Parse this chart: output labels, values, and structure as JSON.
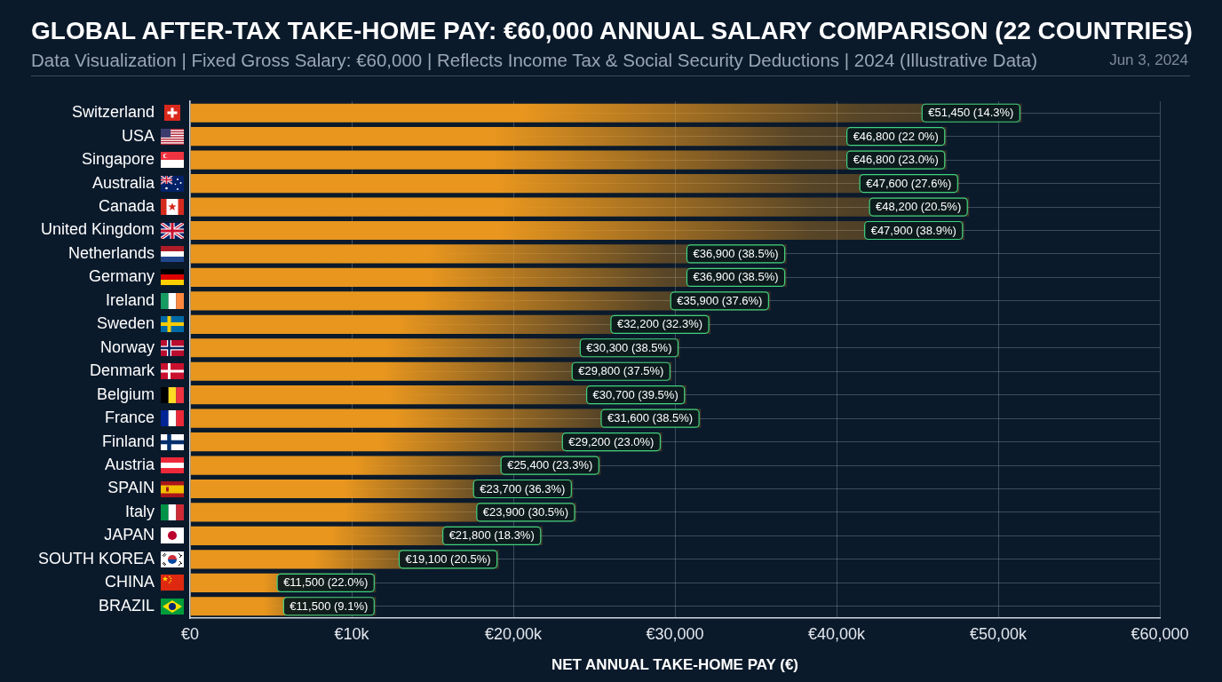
{
  "chart_data": {
    "type": "bar",
    "orientation": "horizontal",
    "title": "GLOBAL AFTER-TAX TAKE-HOME PAY: €60,000 ANNUAL SALARY COMPARISON (22 COUNTRIES)",
    "subtitle": "Data Visualization | Fixed Gross Salary: €60,000 | Reflects Income Tax & Social Security Deductions | 2024 (Illustrative Data)",
    "xlabel": "NET ANNUAL TAKE-HOME PAY (€)",
    "annotations": [
      "Jun 3, 2024"
    ],
    "categories": [
      "Switzerland",
      "USA",
      "Singapore",
      "Australia",
      "Canada",
      "United Kingdom",
      "Netherlands",
      "Germany",
      "Ireland",
      "Sweden",
      "Norway",
      "Denmark",
      "Belgium",
      "France",
      "Finland",
      "Austria",
      "SPAIN",
      "Italy",
      "JAPAN",
      "SOUTH KOREA",
      "CHINA",
      "BRAZIL"
    ],
    "values": [
      51450,
      46800,
      46800,
      47600,
      48200,
      47900,
      36900,
      36900,
      35900,
      32200,
      30300,
      29800,
      30700,
      31600,
      29200,
      25400,
      23700,
      23900,
      21800,
      19100,
      11500,
      11500
    ],
    "value_labels": [
      "€51,450 (14.3%)",
      "€46,800 (22 0%)",
      "€46,800 (23.0%)",
      "€47,600 (27.6%)",
      "€48,200 (20.5%)",
      "€47,900 (38.9%)",
      "€36,900 (38.5%)",
      "€36,900 (38.5%)",
      "€35,900 (37.6%)",
      "€32,200 (32.3%)",
      "€30,300 (38.5%)",
      "€29,800 (37.5%)",
      "€30,700 (39.5%)",
      "€31,600 (38.5%)",
      "€29,200 (23.0%)",
      "€25,400 (23.3%)",
      "€23,700 (36.3%)",
      "€23,900 (30.5%)",
      "€21,800 (18.3%)",
      "€19,100 (20.5%)",
      "€11,500 (22.0%)",
      "€11,500 (9.1%)"
    ],
    "color": "#e8961e",
    "xlim": [
      0,
      60000
    ],
    "xticks": [
      {
        "value": 0,
        "label": "€0"
      },
      {
        "value": 10000,
        "label": "€10k"
      },
      {
        "value": 20000,
        "label": "€20,00k"
      },
      {
        "value": 30000,
        "label": "€30,000"
      },
      {
        "value": 40000,
        "label": "€40,00k"
      },
      {
        "value": 50000,
        "label": "€50,00k"
      },
      {
        "value": 60000,
        "label": "€60,000"
      }
    ],
    "grid": true
  }
}
